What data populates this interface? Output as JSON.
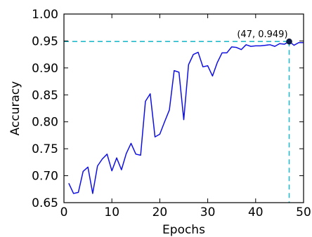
{
  "chart_data": {
    "type": "line",
    "title": "",
    "xlabel": "Epochs",
    "ylabel": "Accuracy",
    "xlim": [
      0,
      50
    ],
    "ylim": [
      0.65,
      1.0
    ],
    "xticks": [
      0,
      10,
      20,
      30,
      40,
      50
    ],
    "xtick_labels": [
      "0",
      "10",
      "20",
      "30",
      "40",
      "50"
    ],
    "yticks": [
      0.65,
      0.7,
      0.75,
      0.8,
      0.85,
      0.9,
      0.95,
      1.0
    ],
    "ytick_labels": [
      "0.65",
      "0.70",
      "0.75",
      "0.80",
      "0.85",
      "0.90",
      "0.95",
      "1.00"
    ],
    "grid": false,
    "series": [
      {
        "color": "#1010e0",
        "x": [
          1,
          2,
          3,
          4,
          5,
          6,
          7,
          8,
          9,
          10,
          11,
          12,
          13,
          14,
          15,
          16,
          17,
          18,
          19,
          20,
          21,
          22,
          23,
          24,
          25,
          26,
          27,
          28,
          29,
          30,
          31,
          32,
          33,
          34,
          35,
          36,
          37,
          38,
          39,
          40,
          41,
          42,
          43,
          44,
          45,
          46,
          47,
          48,
          49,
          50
        ],
        "y": [
          0.686,
          0.667,
          0.669,
          0.708,
          0.716,
          0.667,
          0.718,
          0.731,
          0.74,
          0.709,
          0.733,
          0.711,
          0.741,
          0.76,
          0.74,
          0.738,
          0.838,
          0.852,
          0.772,
          0.777,
          0.8,
          0.822,
          0.895,
          0.892,
          0.804,
          0.906,
          0.925,
          0.929,
          0.902,
          0.904,
          0.885,
          0.91,
          0.928,
          0.928,
          0.939,
          0.938,
          0.934,
          0.943,
          0.94,
          0.941,
          0.941,
          0.942,
          0.943,
          0.94,
          0.945,
          0.944,
          0.949,
          0.942,
          0.947,
          0.947
        ]
      }
    ],
    "highlight": {
      "x": 47,
      "y": 0.949,
      "label": "(47, 0.949)",
      "point_color": "#0a1a4a",
      "guide_color": "#22bbcc"
    }
  }
}
